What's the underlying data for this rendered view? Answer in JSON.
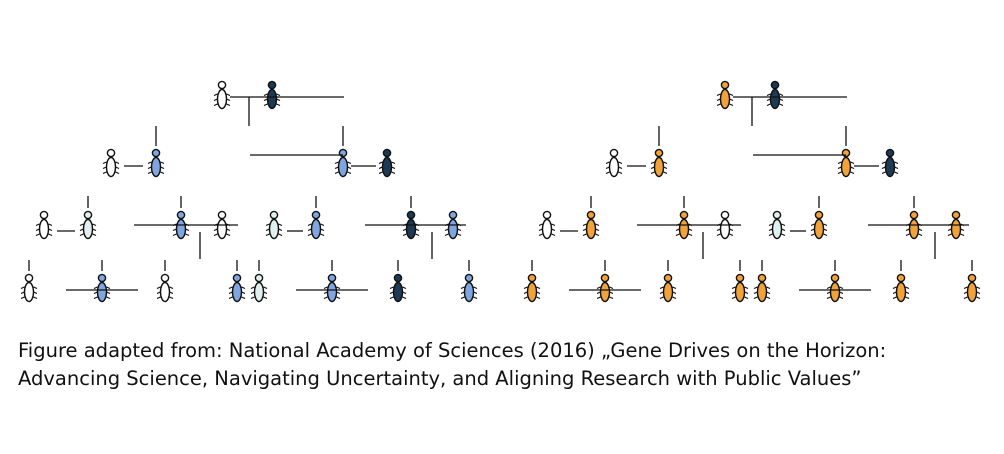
{
  "colors": {
    "wild": "#ffffff",
    "carrier_left": "#7fa6e0",
    "carrier_right": "#f2a23a",
    "drive": "#1d3a55",
    "wild_teal_tint": "#dff0ee",
    "outline": "#111111"
  },
  "icon": "insect-icon",
  "pedigrees": [
    {
      "name": "left",
      "generations": [
        [
          "wild",
          "drive"
        ],
        [
          "wild",
          "carrier",
          "carrier",
          "drive"
        ],
        [
          "wild",
          "wild",
          "carrier",
          "wild",
          "wild",
          "carrier",
          "drive",
          "carrier"
        ],
        [
          "wild",
          "carrier",
          "wild",
          "carrier",
          "wild",
          "carrier",
          "drive",
          "carrier"
        ]
      ]
    },
    {
      "name": "right",
      "generations": [
        [
          "carrier",
          "drive"
        ],
        [
          "wild",
          "carrier",
          "carrier",
          "drive"
        ],
        [
          "wild",
          "carrier",
          "carrier",
          "wild",
          "wild",
          "carrier",
          "carrier",
          "carrier"
        ],
        [
          "carrier",
          "carrier",
          "carrier",
          "carrier",
          "carrier",
          "carrier",
          "carrier",
          "carrier"
        ]
      ]
    }
  ],
  "caption": {
    "line1": "Figure adapted from: National Academy of Sciences (2016) „Gene Drives on the Horizon:",
    "line2": "Advancing Science, Navigating Uncertainty, and Aligning Research with Public Values”"
  }
}
